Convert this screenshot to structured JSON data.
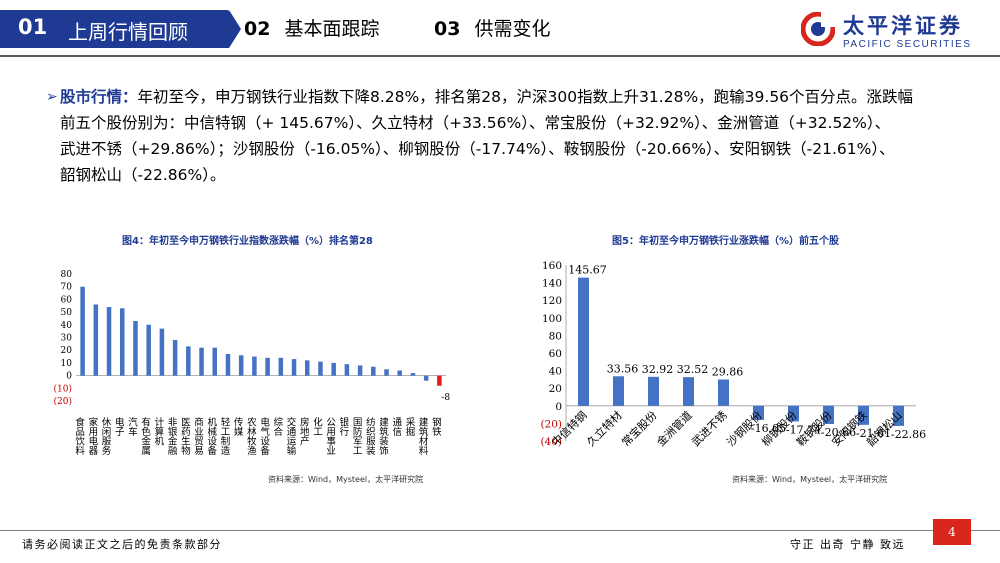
{
  "header": {
    "tabs": [
      {
        "num": "01",
        "label": "上周行情回顾"
      },
      {
        "num": "02",
        "label": "基本面跟踪"
      },
      {
        "num": "03",
        "label": "供需变化"
      }
    ],
    "logo_cn": "太平洋证券",
    "logo_en": "PACIFIC SECURITIES"
  },
  "summary": {
    "lead": "股市行情：",
    "line1": "年初至今，申万钢铁行业指数下降8.28%，排名第28，沪深300指数上升31.28%，跑输39.56个百分点。涨跌幅",
    "line2": "前五个股份别为：中信特钢（+ 145.67%）、久立特材（+33.56%）、常宝股份（+32.92%）、金洲管道（+32.52%）、",
    "line3": "武进不锈（+29.86%）；沙钢股份（-16.05%）、柳钢股份（-17.74%）、鞍钢股份（-20.66%）、安阳钢铁（-21.61%）、",
    "line4": "韶钢松山（-22.86%）。"
  },
  "colors": {
    "brand": "#1f3a93",
    "bar": "#4472c4",
    "highlight": "#e41a1c",
    "page_badge": "#d9261c"
  },
  "chart_data": [
    {
      "type": "bar",
      "title": "图4：年初至今申万钢铁行业指数涨跌幅（%）排名第28",
      "source": "资料来源：Wind，Mysteel，太平洋研究院",
      "ylim": [
        -20,
        80
      ],
      "yticks": [
        "80",
        "70",
        "60",
        "50",
        "40",
        "30",
        "20",
        "10",
        "0",
        "(10)",
        "(20)"
      ],
      "ytick_values": [
        80,
        70,
        60,
        50,
        40,
        30,
        20,
        10,
        0,
        -10,
        -20
      ],
      "categories": [
        "食品饮料",
        "家用电器",
        "休闲服务",
        "电子",
        "汽车",
        "有色金属",
        "计算机",
        "非银金融",
        "医药生物",
        "商业贸易",
        "机械设备",
        "轻工制造",
        "传媒",
        "农林牧渔",
        "电气设备",
        "综合",
        "交通运输",
        "房地产",
        "化工",
        "公用事业",
        "银行",
        "国防军工",
        "纺织服装",
        "建筑装饰",
        "通信",
        "采掘",
        "建筑材料",
        "钢铁"
      ],
      "values": [
        70,
        56,
        54,
        53,
        43,
        40,
        37,
        28,
        23,
        22,
        22,
        17,
        16,
        15,
        14,
        14,
        13,
        12,
        11,
        10,
        9,
        8,
        7,
        5,
        4,
        2,
        -4,
        -8
      ],
      "highlight_index": 27,
      "highlight_label": "-8",
      "visible_labels": [
        "食品饮料",
        "家用电器",
        "休闲服务",
        "电子",
        "汽车",
        "有色金属",
        "计算机",
        "非银金融",
        "医药生物",
        "商业贸易",
        "机械设备",
        "轻工制造",
        "传媒",
        "农林牧渔",
        "电气设备",
        "综合",
        "交通运输",
        "房地产",
        "化工",
        "公用事业",
        "银行",
        "国防军工",
        "纺织服装",
        "建筑装饰",
        "通信",
        "采掘",
        "建筑材料",
        "钢铁"
      ]
    },
    {
      "type": "bar",
      "title": "图5：年初至今申万钢铁行业涨跌幅（%）前五个股",
      "source": "资料来源：Wind，Mysteel，太平洋研究院",
      "ylim": [
        -40,
        160
      ],
      "yticks": [
        "160",
        "140",
        "120",
        "100",
        "80",
        "60",
        "40",
        "20",
        "0",
        "(20)",
        "(40)"
      ],
      "ytick_values": [
        160,
        140,
        120,
        100,
        80,
        60,
        40,
        20,
        0,
        -20,
        -40
      ],
      "categories": [
        "中信特钢",
        "久立特材",
        "常宝股份",
        "金洲管道",
        "武进不锈",
        "沙钢股份",
        "柳钢股份",
        "鞍钢股份",
        "安阳钢铁",
        "韶钢松山"
      ],
      "values": [
        145.67,
        33.56,
        32.92,
        32.52,
        29.86,
        -16.05,
        -17.74,
        -20.66,
        -21.61,
        -22.86
      ],
      "value_labels": [
        "145.67",
        "33.56",
        "32.92",
        "32.52",
        "29.86",
        "-16.05",
        "-17.74",
        "-20.66",
        "-21.61",
        "-22.86"
      ]
    }
  ],
  "footer": {
    "disclaimer": "请务必阅读正文之后的免责条款部分",
    "motto": "守正  出奇  宁静  致远",
    "page": "4"
  }
}
